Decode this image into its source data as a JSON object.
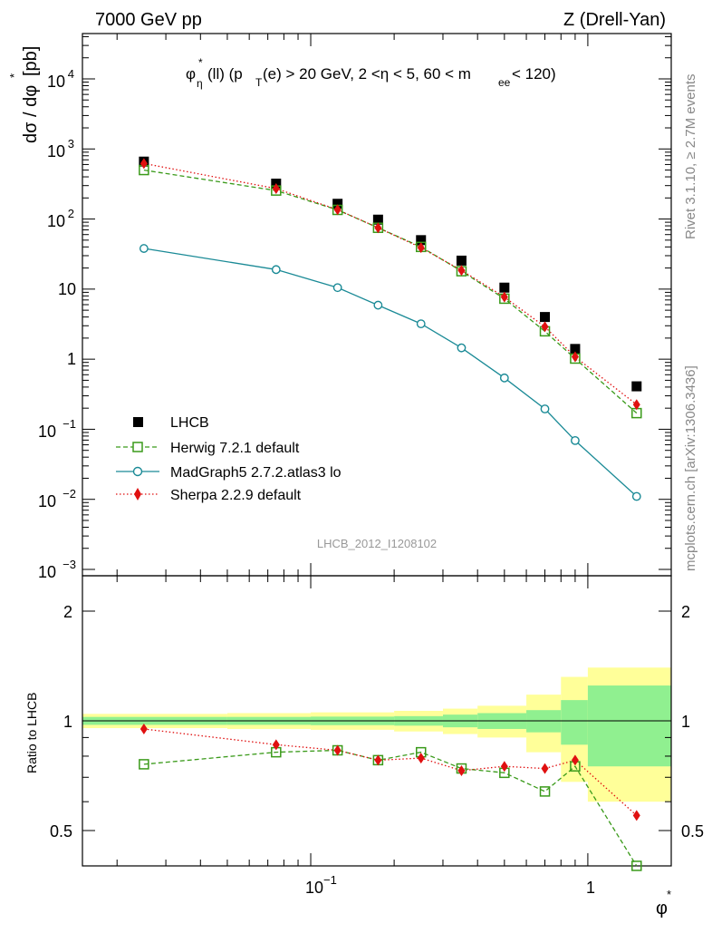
{
  "header": {
    "left": "7000 GeV pp",
    "right": "Z (Drell-Yan)"
  },
  "title_parts": {
    "phi": "φ",
    "eta": "η",
    "star": "*",
    "ll": "(ll) (p",
    "T": "T",
    "rest1": "(e) > 20 GeV, 2 <η < 5, 60 < m",
    "ee": "ee",
    "rest2": " < 120)"
  },
  "side_labels": {
    "rivet": "Rivet 3.1.10, ≥ 2.7M events",
    "mcplots": "mcplots.cern.ch [arXiv:1306.3436]"
  },
  "watermark": "LHCB_2012_I1208102",
  "axis_labels": {
    "y_main": "dσ / dφ",
    "y_main_star": "*",
    "y_main_unit": " [pb]",
    "y_ratio": "Ratio to LHCB",
    "x": "φ",
    "x_star": "*"
  },
  "tick_labels": {
    "x": [
      "10",
      "−1",
      "1"
    ],
    "y_main": [
      "10",
      "−3",
      "10",
      "−2",
      "10",
      "−1",
      "1",
      "10",
      "10",
      "2",
      "10",
      "3",
      "10",
      "4"
    ],
    "y_ratio": [
      "0.5",
      "1",
      "2"
    ],
    "y_ratio_right": [
      "0.5",
      "1",
      "2"
    ]
  },
  "colors": {
    "lhcb": "#000000",
    "herwig": "#3a9a1a",
    "madgraph": "#1a8a96",
    "sherpa": "#e01010",
    "band_green": "#90f090",
    "band_yellow": "#ffff99"
  },
  "chart_data": [
    {
      "type": "scatter",
      "x_scale": "log",
      "y_scale": "log",
      "xlim": [
        0.015,
        2.0
      ],
      "ylim": [
        0.001,
        50000
      ],
      "x": [
        0.025,
        0.075,
        0.125,
        0.175,
        0.25,
        0.35,
        0.5,
        0.7,
        0.9,
        1.5
      ],
      "series": [
        {
          "name": "LHCB",
          "style": "filled-square",
          "values": [
            660,
            320,
            165,
            98,
            50,
            25.5,
            10.5,
            4.0,
            1.4,
            0.41
          ]
        },
        {
          "name": "Herwig 7.2.1 default",
          "style": "open-square dashed",
          "values": [
            500,
            255,
            135,
            75,
            40,
            18,
            7.3,
            2.5,
            1.02,
            0.17
          ]
        },
        {
          "name": "MadGraph5 2.7.2.atlas3 lo",
          "style": "open-circle solid",
          "values": [
            38,
            19,
            10.5,
            5.9,
            3.2,
            1.45,
            0.54,
            0.195,
            0.069,
            0.011
          ]
        },
        {
          "name": "Sherpa 2.2.9 default",
          "style": "filled-diamond dotted",
          "values": [
            620,
            272,
            136,
            75,
            39,
            18.5,
            7.7,
            2.9,
            1.08,
            0.225
          ]
        }
      ]
    },
    {
      "type": "scatter",
      "x_scale": "log",
      "y_scale": "log",
      "xlim": [
        0.015,
        2.0
      ],
      "ylim": [
        0.4,
        2.4
      ],
      "ylabel": "Ratio to LHCB",
      "x": [
        0.025,
        0.075,
        0.125,
        0.175,
        0.25,
        0.35,
        0.5,
        0.7,
        0.9,
        1.5
      ],
      "bands": {
        "edges": [
          0.015,
          0.05,
          0.1,
          0.2,
          0.3,
          0.4,
          0.6,
          0.8,
          1.0,
          2.0
        ],
        "green_half_width": [
          0.025,
          0.025,
          0.027,
          0.03,
          0.04,
          0.05,
          0.07,
          0.14,
          0.25
        ],
        "yellow_half_width": [
          0.045,
          0.05,
          0.055,
          0.065,
          0.08,
          0.1,
          0.18,
          0.32,
          0.4
        ]
      },
      "series": [
        {
          "name": "Herwig 7.2.1 default",
          "values": [
            0.76,
            0.82,
            0.83,
            0.78,
            0.82,
            0.74,
            0.72,
            0.64,
            0.75,
            0.4
          ]
        },
        {
          "name": "Sherpa 2.2.9 default",
          "values": [
            0.95,
            0.86,
            0.83,
            0.78,
            0.79,
            0.73,
            0.75,
            0.74,
            0.78,
            0.55
          ]
        }
      ]
    }
  ]
}
